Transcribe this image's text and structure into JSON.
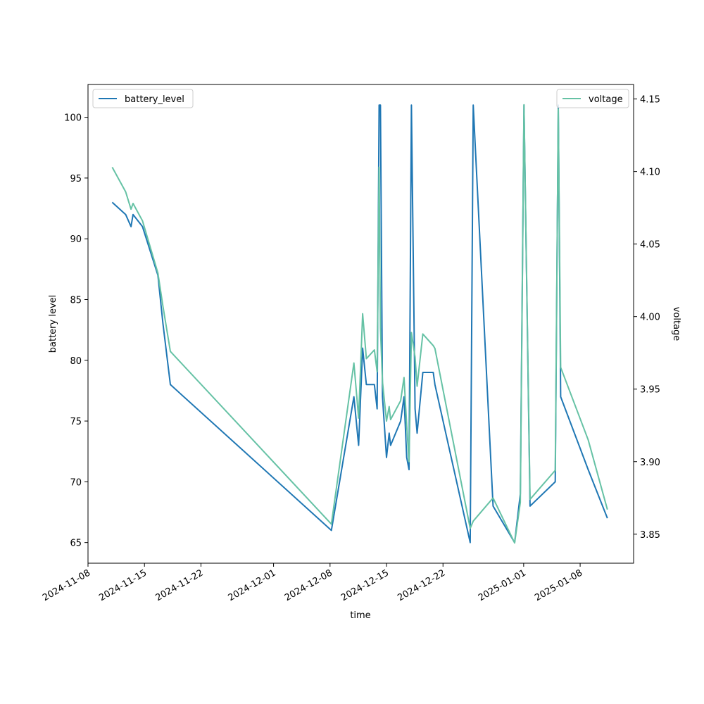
{
  "chart_data": {
    "type": "line",
    "title": "",
    "xlabel": "time",
    "ylabel_left": "battery level",
    "ylabel_right": "voltage",
    "legend_left_position": "upper-left",
    "legend_right_position": "upper-right",
    "grid": false,
    "x_ticks": [
      "2024-11-08",
      "2024-11-15",
      "2024-11-22",
      "2024-12-01",
      "2024-12-08",
      "2024-12-15",
      "2024-12-22",
      "2025-01-01",
      "2025-01-08"
    ],
    "x_range": [
      "2024-11-08T00:00",
      "2025-01-14T15:00"
    ],
    "y_left_ticks": [
      "65",
      "70",
      "75",
      "80",
      "85",
      "90",
      "95",
      "100"
    ],
    "y_left_range": [
      63.3,
      102.7
    ],
    "y_right_ticks": [
      "3.85",
      "3.90",
      "3.95",
      "4.00",
      "4.05",
      "4.10",
      "4.15"
    ],
    "y_right_range": [
      3.83,
      4.16
    ],
    "series": [
      {
        "name": "battery_level",
        "axis": "left",
        "color": "#1f77b4",
        "points": [
          [
            "2024-11-11T00:00",
            93
          ],
          [
            "2024-11-12T16:00",
            92
          ],
          [
            "2024-11-13T08:00",
            91
          ],
          [
            "2024-11-13T14:00",
            92
          ],
          [
            "2024-11-14T18:00",
            91
          ],
          [
            "2024-11-16T16:00",
            87
          ],
          [
            "2024-11-17T07:00",
            83
          ],
          [
            "2024-11-18T05:00",
            78
          ],
          [
            "2024-12-08T04:00",
            66
          ],
          [
            "2024-12-10T23:00",
            77
          ],
          [
            "2024-12-11T13:00",
            73
          ],
          [
            "2024-12-12T01:00",
            81
          ],
          [
            "2024-12-12T12:00",
            78
          ],
          [
            "2024-12-13T12:00",
            78
          ],
          [
            "2024-12-13T20:00",
            76
          ],
          [
            "2024-12-14T02:00",
            101
          ],
          [
            "2024-12-14T06:00",
            101
          ],
          [
            "2024-12-14T12:00",
            77
          ],
          [
            "2024-12-15T00:00",
            72
          ],
          [
            "2024-12-15T08:00",
            74
          ],
          [
            "2024-12-15T12:00",
            73
          ],
          [
            "2024-12-16T18:00",
            75
          ],
          [
            "2024-12-17T04:00",
            77
          ],
          [
            "2024-12-17T12:00",
            72
          ],
          [
            "2024-12-17T19:00",
            71
          ],
          [
            "2024-12-18T02:00",
            101
          ],
          [
            "2024-12-18T13:00",
            76
          ],
          [
            "2024-12-18T19:00",
            74
          ],
          [
            "2024-12-19T12:00",
            79
          ],
          [
            "2024-12-20T19:00",
            79
          ],
          [
            "2024-12-21T00:00",
            78
          ],
          [
            "2024-12-25T09:00",
            65
          ],
          [
            "2024-12-25T18:00",
            101
          ],
          [
            "2024-12-28T05:00",
            68
          ],
          [
            "2024-12-30T21:00",
            65
          ],
          [
            "2024-12-31T14:00",
            69
          ],
          [
            "2025-01-01T01:00",
            101
          ],
          [
            "2025-01-01T19:00",
            68
          ],
          [
            "2025-01-04T22:00",
            70
          ],
          [
            "2025-01-05T07:00",
            101
          ],
          [
            "2025-01-05T14:00",
            77
          ],
          [
            "2025-01-09T00:00",
            71
          ],
          [
            "2025-01-11T09:00",
            67
          ]
        ]
      },
      {
        "name": "voltage",
        "axis": "right",
        "color": "#66c2a5",
        "points": [
          [
            "2024-11-11T00:00",
            4.103
          ],
          [
            "2024-11-12T16:00",
            4.086
          ],
          [
            "2024-11-13T08:00",
            4.074
          ],
          [
            "2024-11-13T14:00",
            4.078
          ],
          [
            "2024-11-14T18:00",
            4.066
          ],
          [
            "2024-11-16T16:00",
            4.03
          ],
          [
            "2024-11-17T07:00",
            4.007
          ],
          [
            "2024-11-18T05:00",
            3.976
          ],
          [
            "2024-12-08T04:00",
            3.857
          ],
          [
            "2024-12-10T23:00",
            3.968
          ],
          [
            "2024-12-11T13:00",
            3.93
          ],
          [
            "2024-12-12T01:00",
            4.002
          ],
          [
            "2024-12-12T12:00",
            3.971
          ],
          [
            "2024-12-13T12:00",
            3.977
          ],
          [
            "2024-12-13T20:00",
            3.962
          ],
          [
            "2024-12-14T02:00",
            4.103
          ],
          [
            "2024-12-14T06:00",
            3.992
          ],
          [
            "2024-12-14T12:00",
            3.955
          ],
          [
            "2024-12-15T00:00",
            3.928
          ],
          [
            "2024-12-15T08:00",
            3.938
          ],
          [
            "2024-12-15T12:00",
            3.929
          ],
          [
            "2024-12-16T18:00",
            3.942
          ],
          [
            "2024-12-17T04:00",
            3.958
          ],
          [
            "2024-12-17T12:00",
            3.925
          ],
          [
            "2024-12-17T19:00",
            3.9
          ],
          [
            "2024-12-18T02:00",
            3.989
          ],
          [
            "2024-12-18T13:00",
            3.972
          ],
          [
            "2024-12-18T19:00",
            3.952
          ],
          [
            "2024-12-19T12:00",
            3.988
          ],
          [
            "2024-12-20T19:00",
            3.98
          ],
          [
            "2024-12-21T00:00",
            3.978
          ],
          [
            "2024-12-25T09:00",
            3.854
          ],
          [
            "2024-12-25T18:00",
            3.859
          ],
          [
            "2024-12-28T05:00",
            3.875
          ],
          [
            "2024-12-30T21:00",
            3.844
          ],
          [
            "2024-12-31T14:00",
            3.872
          ],
          [
            "2025-01-01T01:00",
            4.146
          ],
          [
            "2025-01-01T19:00",
            3.874
          ],
          [
            "2025-01-04T22:00",
            3.894
          ],
          [
            "2025-01-05T07:00",
            4.143
          ],
          [
            "2025-01-05T14:00",
            3.965
          ],
          [
            "2025-01-09T00:00",
            3.915
          ],
          [
            "2025-01-11T09:00",
            3.867
          ]
        ]
      }
    ]
  }
}
